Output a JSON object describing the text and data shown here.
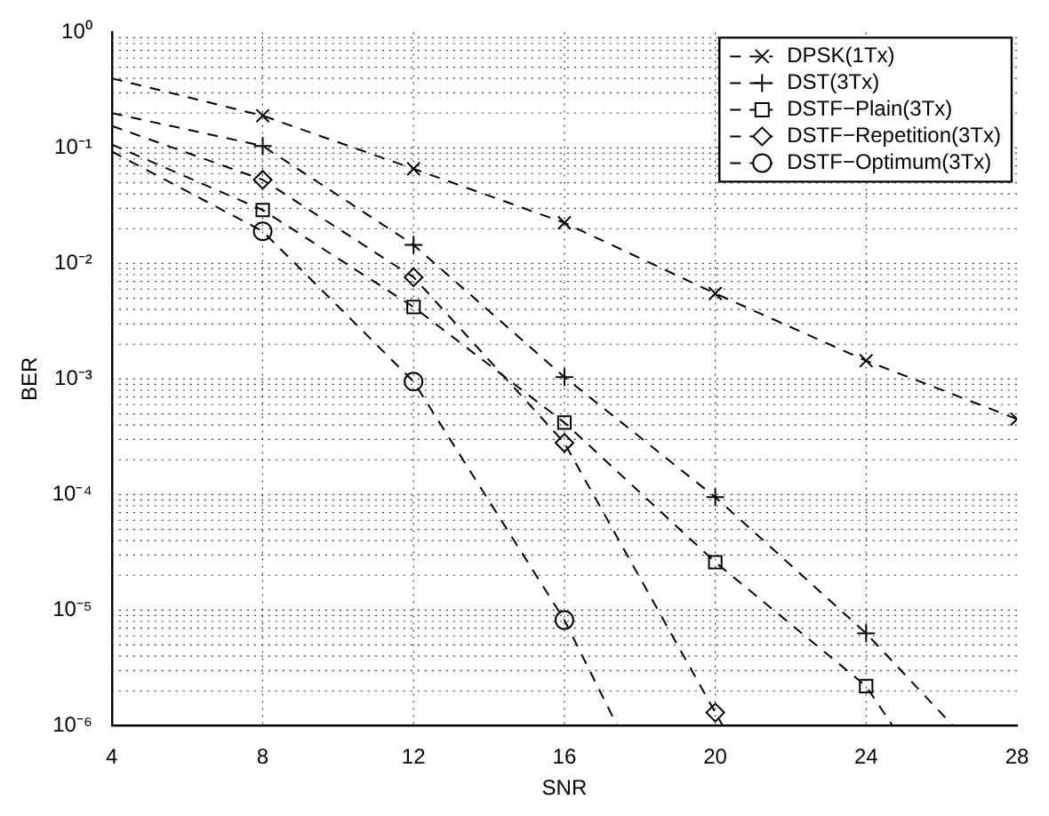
{
  "chart_data": {
    "type": "line",
    "xlabel": "SNR",
    "ylabel": "BER",
    "log": "y",
    "grid": true,
    "legend": "top right",
    "line_style": "dashed",
    "xlim": [
      4,
      28
    ],
    "xticks": [
      4,
      8,
      12,
      16,
      20,
      24,
      28
    ],
    "ylim": [
      1e-06,
      1
    ],
    "yticks": [
      {
        "value": 1e-06,
        "label": "10⁻⁶"
      },
      {
        "value": 1e-05,
        "label": "10⁻⁵"
      },
      {
        "value": 0.0001,
        "label": "10⁻⁴"
      },
      {
        "value": 0.001,
        "label": "10⁻³"
      },
      {
        "value": 0.01,
        "label": "10⁻²"
      },
      {
        "value": 0.1,
        "label": "10⁻¹"
      },
      {
        "value": 1,
        "label": "10⁰"
      }
    ],
    "series": [
      {
        "name": "DPSK(1Tx)",
        "color": "#000000",
        "marker": "x",
        "x": [
          4,
          8,
          12,
          16,
          20,
          24,
          28
        ],
        "values": [
          0.4,
          0.19,
          0.066,
          0.0225,
          0.0055,
          0.00144,
          0.00045
        ]
      },
      {
        "name": "DST(3Tx)",
        "color": "#000000",
        "marker": "cross",
        "x": [
          4,
          8,
          12,
          16,
          20,
          24,
          26.3
        ],
        "values": [
          0.2,
          0.104,
          0.0145,
          0.00104,
          9.5e-05,
          6.3e-06,
          1e-06
        ]
      },
      {
        "name": "DSTF−Plain(3Tx)",
        "color": "#000000",
        "marker": "square",
        "x": [
          4,
          8,
          12,
          16,
          20,
          24,
          24.7
        ],
        "values": [
          0.107,
          0.029,
          0.0042,
          0.00042,
          2.6e-05,
          2.2e-06,
          1e-06
        ]
      },
      {
        "name": "DSTF−Repetition(3Tx)",
        "color": "#000000",
        "marker": "diamond",
        "x": [
          4,
          8,
          12,
          16,
          20,
          20.2
        ],
        "values": [
          0.155,
          0.053,
          0.0076,
          0.00028,
          1.3e-06,
          1e-06
        ]
      },
      {
        "name": "DSTF−Optimum(3Tx)",
        "color": "#000000",
        "marker": "circle",
        "x": [
          4,
          8,
          12,
          16,
          17.4
        ],
        "values": [
          0.093,
          0.019,
          0.00095,
          8.2e-06,
          1e-06
        ]
      }
    ]
  }
}
